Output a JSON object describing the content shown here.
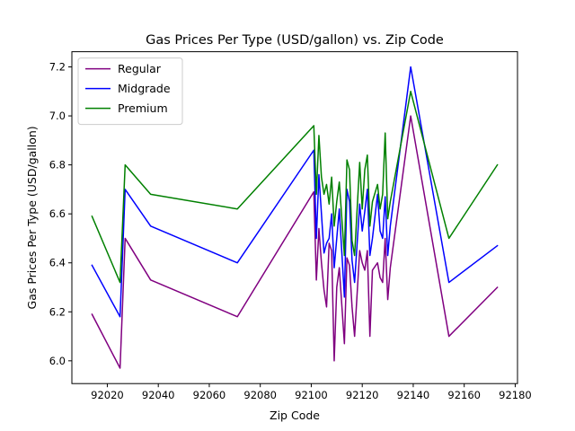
{
  "chart_data": {
    "type": "line",
    "title": "Gas Prices Per Type (USD/gallon) vs. Zip Code",
    "xlabel": "Zip Code",
    "ylabel": "Gas Prices Per Type (USD/gallon)",
    "xlim": [
      92006.1,
      92180.9
    ],
    "ylim": [
      5.907,
      7.262
    ],
    "xticks": [
      92020,
      92040,
      92060,
      92080,
      92100,
      92120,
      92140,
      92160,
      92180
    ],
    "yticks": [
      6.0,
      6.2,
      6.4,
      6.6,
      6.8,
      7.0,
      7.2
    ],
    "grid": false,
    "legend_position": "top-left",
    "x": [
      92014,
      92025,
      92027,
      92037,
      92071,
      92101,
      92102,
      92103,
      92104,
      92105,
      92106,
      92107,
      92108,
      92109,
      92110,
      92111,
      92113,
      92114,
      92115,
      92116,
      92117,
      92119,
      92120,
      92121,
      92122,
      92123,
      92124,
      92126,
      92127,
      92128,
      92129,
      92130,
      92131,
      92139,
      92154,
      92173
    ],
    "series": [
      {
        "name": "Regular",
        "color": "#800080",
        "values": [
          6.19,
          5.97,
          6.5,
          6.33,
          6.18,
          6.69,
          6.33,
          6.54,
          6.4,
          6.29,
          6.22,
          6.48,
          6.45,
          6.0,
          6.3,
          6.38,
          6.07,
          6.42,
          6.39,
          6.22,
          6.1,
          6.45,
          6.4,
          6.37,
          6.45,
          6.1,
          6.37,
          6.4,
          6.34,
          6.32,
          6.5,
          6.25,
          6.38,
          7.0,
          6.1,
          6.3
        ]
      },
      {
        "name": "Midgrade",
        "color": "#0000ff",
        "values": [
          6.39,
          6.18,
          6.7,
          6.55,
          6.4,
          6.86,
          6.5,
          6.76,
          6.6,
          6.44,
          6.48,
          6.5,
          6.6,
          6.38,
          6.5,
          6.62,
          6.26,
          6.7,
          6.65,
          6.41,
          6.32,
          6.64,
          6.53,
          6.61,
          6.7,
          6.43,
          6.5,
          6.68,
          6.53,
          6.5,
          6.67,
          6.43,
          6.55,
          7.2,
          6.32,
          6.47
        ]
      },
      {
        "name": "Premium",
        "color": "#008000",
        "values": [
          6.59,
          6.32,
          6.8,
          6.68,
          6.62,
          6.96,
          6.68,
          6.92,
          6.75,
          6.68,
          6.72,
          6.64,
          6.75,
          6.55,
          6.65,
          6.73,
          6.43,
          6.82,
          6.78,
          6.49,
          6.43,
          6.81,
          6.62,
          6.78,
          6.84,
          6.55,
          6.65,
          6.72,
          6.62,
          6.68,
          6.93,
          6.58,
          6.65,
          7.1,
          6.5,
          6.8
        ]
      }
    ]
  }
}
